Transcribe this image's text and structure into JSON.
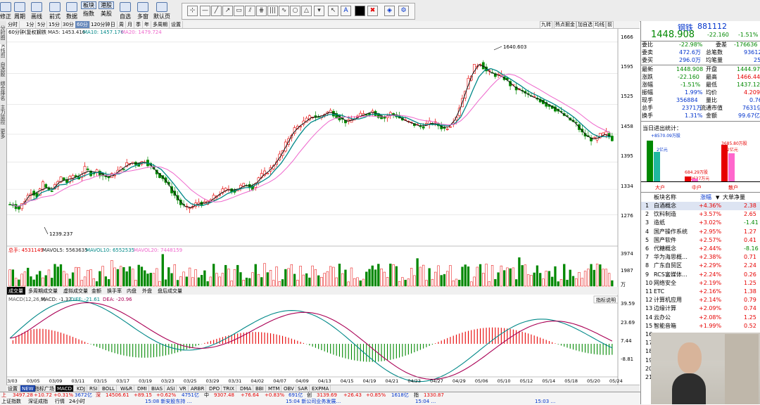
{
  "toolbar": {
    "buttons": [
      "修正",
      "周期",
      "画线",
      "前式",
      "数据",
      "指数",
      "美股",
      "自选",
      "多窗",
      "默认页"
    ],
    "top_small": [
      "板块",
      "港股"
    ]
  },
  "left_strip": [
    "分时图",
    "K线图",
    "自选股",
    "综合排名",
    "主力监控",
    "更多"
  ],
  "period_bar": {
    "items": [
      "分时",
      "1分",
      "5分",
      "15分",
      "30分",
      "60分",
      "120分钟",
      "日",
      "周",
      "月",
      "季",
      "年",
      "多周期",
      "设置"
    ],
    "active": "60分",
    "right_items": [
      "九转",
      "热点掘金",
      "加自选",
      "均线",
      "前"
    ]
  },
  "main_legend": {
    "title": "60分钟(复权)",
    "sub": "钢铁",
    "ma5": "MA5: 1453.416",
    "ma10": "MA10: 1457.176",
    "ma20": "MA20: 1479.724"
  },
  "price_axis": [
    "1666",
    "1595",
    "1525",
    "1458",
    "1395",
    "1334",
    "1276"
  ],
  "annotations": {
    "high": "1640.603",
    "low": "1239.237"
  },
  "volume_legend": {
    "total": "总手: 4531149",
    "mavol5": "MAVOL5: 5563635",
    "mavol10": "MAVOL10: 6552535",
    "mavol20": "MAVOL20: 7448159"
  },
  "volume_axis": [
    "3974",
    "1987",
    "万"
  ],
  "volume_tabs": [
    "成交量",
    "多周期成交量",
    "虚拟成交量",
    "金额",
    "换手率",
    "内盘",
    "外盘",
    "盘后成交量"
  ],
  "macd_legend": {
    "name": "MACD(12,26,9)",
    "macd": "MACD: -1.32",
    "diff": "DIFF: -21.61",
    "dea": "DEA: -20.96"
  },
  "macd_axis": [
    "39.59",
    "23.69",
    "7.44",
    "-8.81"
  ],
  "indicator_button": "指标说明",
  "dates": [
    "03/03",
    "03/05",
    "03/09",
    "03/11",
    "03/15",
    "03/17",
    "03/19",
    "03/23",
    "03/25",
    "03/29",
    "03/31",
    "04/02",
    "04/07",
    "04/09",
    "04/13",
    "04/15",
    "04/19",
    "04/21",
    "04/23",
    "04/27",
    "04/29",
    "05/06",
    "05/10",
    "05/12",
    "05/14",
    "05/18",
    "05/20",
    "05/24"
  ],
  "indicator_tabs": [
    "设置",
    "NEW",
    "指标广场",
    "MACD",
    "KDJ",
    "RSI",
    "BOLL",
    "W&R",
    "DMI",
    "BIAS",
    "ASI",
    "VR",
    "ARBR",
    "DPO",
    "TRIX",
    "DMA",
    "BBI",
    "MTM",
    "OBV",
    "SAR",
    "EXPMA"
  ],
  "indicator_active": "MACD",
  "status_bar": {
    "row1": [
      "3497.28",
      "+10.72",
      "+0.31%",
      "3672亿",
      "创",
      "14506.61",
      "+89.15",
      "+0.62%",
      "4751亿",
      "中",
      "9307.48",
      "+76.64",
      "+0.83%",
      "691亿",
      "创",
      "3139.69",
      "+26.43",
      "+0.85%",
      "1618亿",
      "指",
      "1330.87"
    ],
    "labels1": [
      "上",
      "深"
    ],
    "row2": [
      "上证指数",
      "深证成指",
      "行情",
      "24小时"
    ],
    "news": [
      "15:08 新安股东持 …",
      "15:04 新公司业务发展…",
      "15:04 …",
      "15:03 …"
    ]
  },
  "quote": {
    "name": "钢铁",
    "code": "881112",
    "price": "1448.908",
    "change": "-22.160",
    "pct": "-1.51%",
    "weibi": "-22.98%",
    "weicha": "-176636",
    "weimai": "472.6万",
    "zongbishu": "93612",
    "weimai2": "296.0万",
    "junbiliang": "25",
    "rows": [
      [
        "最新",
        "1448.908",
        "开盘",
        "1444.979"
      ],
      [
        "涨跌",
        "-22.160",
        "最高",
        "1466.44"
      ],
      [
        "涨幅",
        "-1.51%",
        "最低",
        "1437.12"
      ],
      [
        "振幅",
        "1.99%",
        "均价",
        "4.209"
      ],
      [
        "现手",
        "356884",
        "量比",
        "0.76"
      ],
      [
        "总手",
        "2371万",
        "流通市值",
        "7631亿"
      ],
      [
        "换手",
        "1.31%",
        "金额",
        "99.67亿"
      ]
    ]
  },
  "flow": {
    "title": "当日进出统计：",
    "big_in": "+8570.09万股",
    "big_in2": "2亿元",
    "mid": "684.29万股",
    "mid2": "9637万元",
    "small": "3685.80万股",
    "small2": "2亿元",
    "labels": [
      "大户",
      "中户",
      "散户"
    ]
  },
  "board": {
    "headers": [
      "板块名称",
      "涨幅",
      "大单净量"
    ],
    "rows": [
      [
        "1",
        "白酒概念",
        "+4.36%",
        "2.38"
      ],
      [
        "2",
        "饮料制造",
        "+3.57%",
        "2.65"
      ],
      [
        "3",
        "造纸",
        "+3.02%",
        "-1.41"
      ],
      [
        "4",
        "国产操作系统",
        "+2.95%",
        "1.27"
      ],
      [
        "5",
        "国产软件",
        "+2.57%",
        "0.41"
      ],
      [
        "6",
        "代糖概念",
        "+2.44%",
        "-8.16"
      ],
      [
        "7",
        "华为海思概…",
        "+2.38%",
        "0.71"
      ],
      [
        "8",
        "广东自贸区",
        "+2.29%",
        "2.24"
      ],
      [
        "9",
        "RCS富媒体…",
        "+2.24%",
        "0.26"
      ],
      [
        "10",
        "网络安全",
        "+2.19%",
        "1.25"
      ],
      [
        "11",
        "ETC",
        "+2.16%",
        "1.38"
      ],
      [
        "12",
        "计算机应用",
        "+2.14%",
        "0.79"
      ],
      [
        "13",
        "边缘计算",
        "+2.09%",
        "0.74"
      ],
      [
        "14",
        "云办公",
        "+2.08%",
        "1.25"
      ],
      [
        "15",
        "智能音箱",
        "+1.99%",
        "0.52"
      ]
    ],
    "more_index": [
      "16",
      "17",
      "18",
      "19",
      "20",
      "21"
    ]
  },
  "chart_data": {
    "type": "candlestick",
    "y_range": [
      1220,
      1680
    ],
    "high": 1640.603,
    "low": 1239.237,
    "close_series": [
      1300,
      1290,
      1310,
      1330,
      1320,
      1345,
      1330,
      1340,
      1360,
      1350,
      1365,
      1360,
      1380,
      1370,
      1375,
      1365,
      1360,
      1370,
      1380,
      1390,
      1395,
      1390,
      1400,
      1385,
      1370,
      1360,
      1340,
      1320,
      1300,
      1290,
      1295,
      1305,
      1300,
      1310,
      1320,
      1330,
      1335,
      1330,
      1340,
      1345,
      1338,
      1360,
      1370,
      1380,
      1400,
      1420,
      1450,
      1470,
      1480,
      1490,
      1500,
      1495,
      1505,
      1510,
      1500,
      1490,
      1485,
      1495,
      1500,
      1505,
      1510,
      1500,
      1495,
      1505,
      1500,
      1490,
      1485,
      1480,
      1475,
      1480,
      1485,
      1478,
      1470,
      1480,
      1500,
      1540,
      1580,
      1610,
      1620,
      1600,
      1595,
      1590,
      1585,
      1570,
      1560,
      1555,
      1545,
      1540,
      1535,
      1525,
      1520,
      1510,
      1500,
      1490,
      1480,
      1460,
      1450,
      1445,
      1455,
      1460,
      1448
    ]
  }
}
